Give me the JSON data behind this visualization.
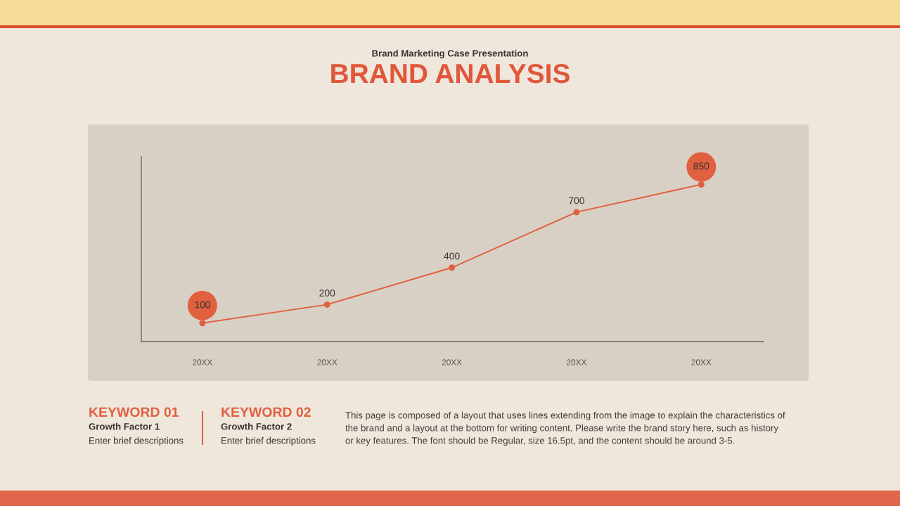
{
  "chart_data": {
    "type": "line",
    "title": "BRAND ANALYSIS",
    "subtitle": "Brand Marketing Case Presentation",
    "categories": [
      "20XX",
      "20XX",
      "20XX",
      "20XX",
      "20XX"
    ],
    "series": [
      {
        "color": "#e0603f",
        "values": [
          100,
          200,
          400,
          700,
          850
        ]
      }
    ],
    "ylim": [
      0,
      1000
    ],
    "tick_labels": "x",
    "marker": "circle",
    "line_style": "solid",
    "data_labels": true,
    "annotations": [
      "KEYWORD 01",
      "Growth Factor 1",
      "Enter brief descriptions",
      "KEYWORD 02",
      "Growth Factor 2",
      "Enter brief descriptions",
      "This page is composed of a layout that uses lines extending from the image to explain the characteristics of\nthe brand and a layout at the bottom for writing content. Please write the brand story here, such as history\nor key features. The font should be Regular, size 16.5pt, and the content should be around 3-5."
    ]
  }
}
